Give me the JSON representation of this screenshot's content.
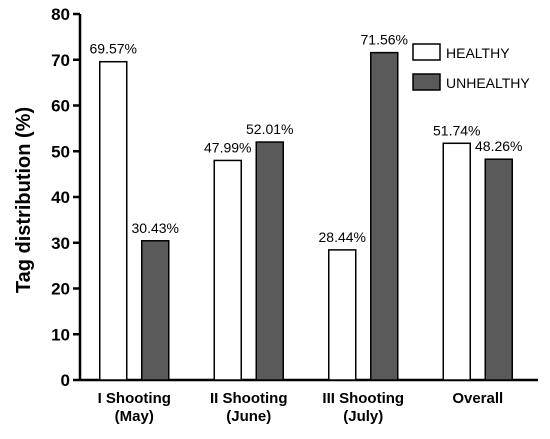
{
  "chart_data": {
    "type": "bar",
    "title": "",
    "xlabel": "",
    "ylabel": "Tag distribution (%)",
    "ylim": [
      0,
      80
    ],
    "yticks": [
      0,
      10,
      20,
      30,
      40,
      50,
      60,
      70,
      80
    ],
    "categories": [
      [
        "I Shooting",
        "(May)"
      ],
      [
        "II Shooting",
        "(June)"
      ],
      [
        "III Shooting",
        "(July)"
      ],
      [
        "Overall"
      ]
    ],
    "series": [
      {
        "name": "HEALTHY",
        "color": "#ffffff",
        "values": [
          69.57,
          47.99,
          28.44,
          51.74
        ],
        "labels": [
          "69.57%",
          "47.99%",
          "28.44%",
          "51.74%"
        ]
      },
      {
        "name": "UNHEALTHY",
        "color": "#5a5a5a",
        "values": [
          30.43,
          52.01,
          71.56,
          48.26
        ],
        "labels": [
          "30.43%",
          "52.01%",
          "71.56%",
          "48.26%"
        ]
      }
    ],
    "legend_position": "top-right",
    "grid": false
  }
}
